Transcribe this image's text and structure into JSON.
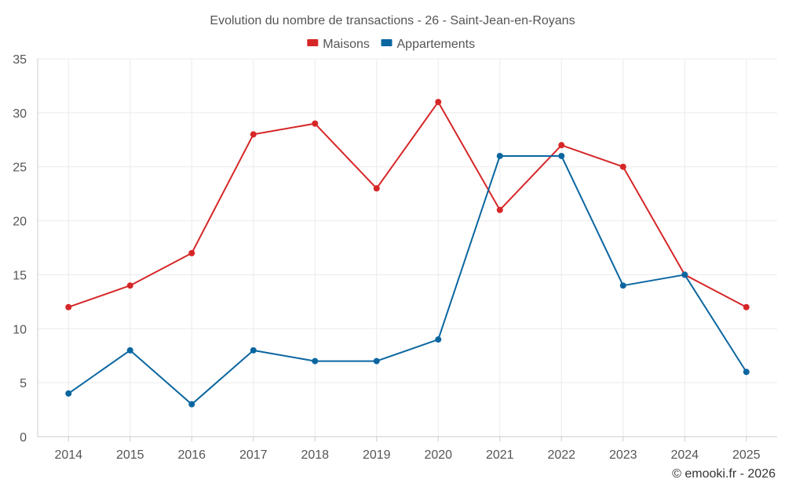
{
  "chart_data": {
    "type": "line",
    "title": "Evolution du nombre de transactions - 26 - Saint-Jean-en-Royans",
    "categories": [
      "2014",
      "2015",
      "2016",
      "2017",
      "2018",
      "2019",
      "2020",
      "2021",
      "2022",
      "2023",
      "2024",
      "2025"
    ],
    "series": [
      {
        "name": "Maisons",
        "color": "#d62728",
        "values": [
          12,
          14,
          17,
          28,
          29,
          23,
          31,
          21,
          27,
          25,
          15,
          12
        ]
      },
      {
        "name": "Appartements",
        "color": "#0b66a0",
        "values": [
          4,
          8,
          3,
          8,
          7,
          7,
          9,
          26,
          26,
          14,
          15,
          6
        ]
      }
    ],
    "ylim": [
      0,
      35
    ],
    "yticks": [
      "0",
      "5",
      "10",
      "15",
      "20",
      "25",
      "30",
      "35"
    ],
    "legend_position": "top-center",
    "grid": true,
    "xlabel": "",
    "ylabel": ""
  },
  "credit": "© emooki.fr - 2026"
}
